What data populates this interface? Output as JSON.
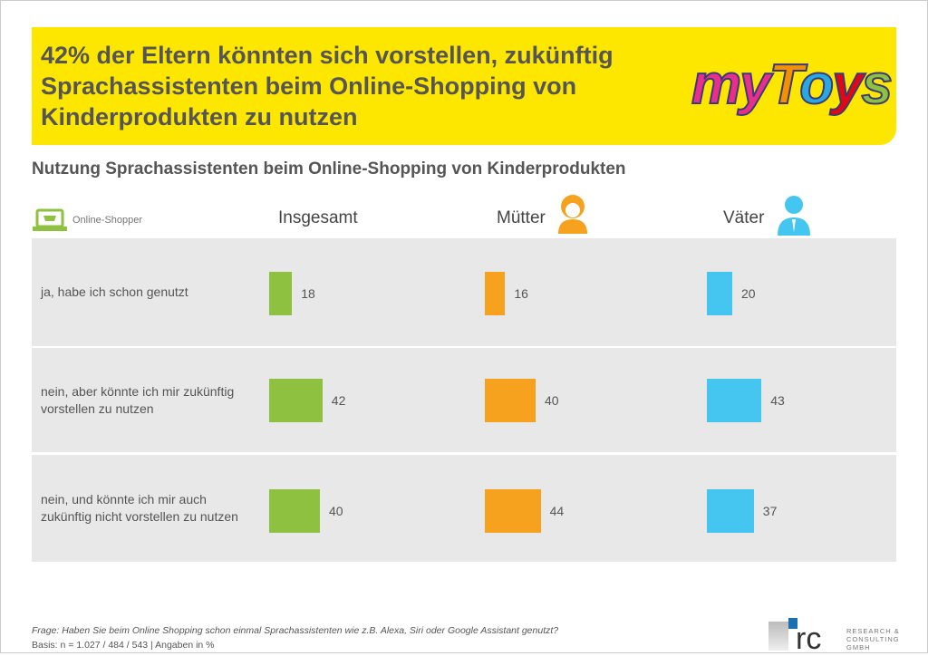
{
  "header": {
    "title": "42% der Eltern könnten sich vorstellen, zukünftig Sprachassistenten beim Online-Shopping von Kinderprodukten zu nutzen",
    "logo_text": "myToys"
  },
  "chart_data": {
    "type": "bar",
    "title": "Nutzung Sprachassistenten beim Online-Shopping von Kinderprodukten",
    "legend_label": "Online-Shopper",
    "categories": [
      "ja, habe ich schon genutzt",
      "nein, aber könnte ich mir zukünftig vorstellen zu nutzen",
      "nein, und könnte ich mir auch zukünftig nicht vorstellen zu nutzen"
    ],
    "series": [
      {
        "name": "Insgesamt",
        "color": "#8dc13f",
        "values": [
          18,
          42,
          40
        ]
      },
      {
        "name": "Mütter",
        "color": "#f6a21e",
        "values": [
          16,
          40,
          44
        ]
      },
      {
        "name": "Väter",
        "color": "#45c6f0",
        "values": [
          20,
          43,
          37
        ]
      }
    ],
    "unit": "%"
  },
  "footer": {
    "question": "Frage: Haben Sie beim Online Shopping schon einmal Sprachassistenten wie z.B. Alexa, Siri oder Google Assistant genutzt?",
    "basis": "Basis: n = 1.027 / 484 / 543 | Angaben in %",
    "company_logo": "rc",
    "company_text": "RESEARCH & CONSULTING GMBH"
  }
}
